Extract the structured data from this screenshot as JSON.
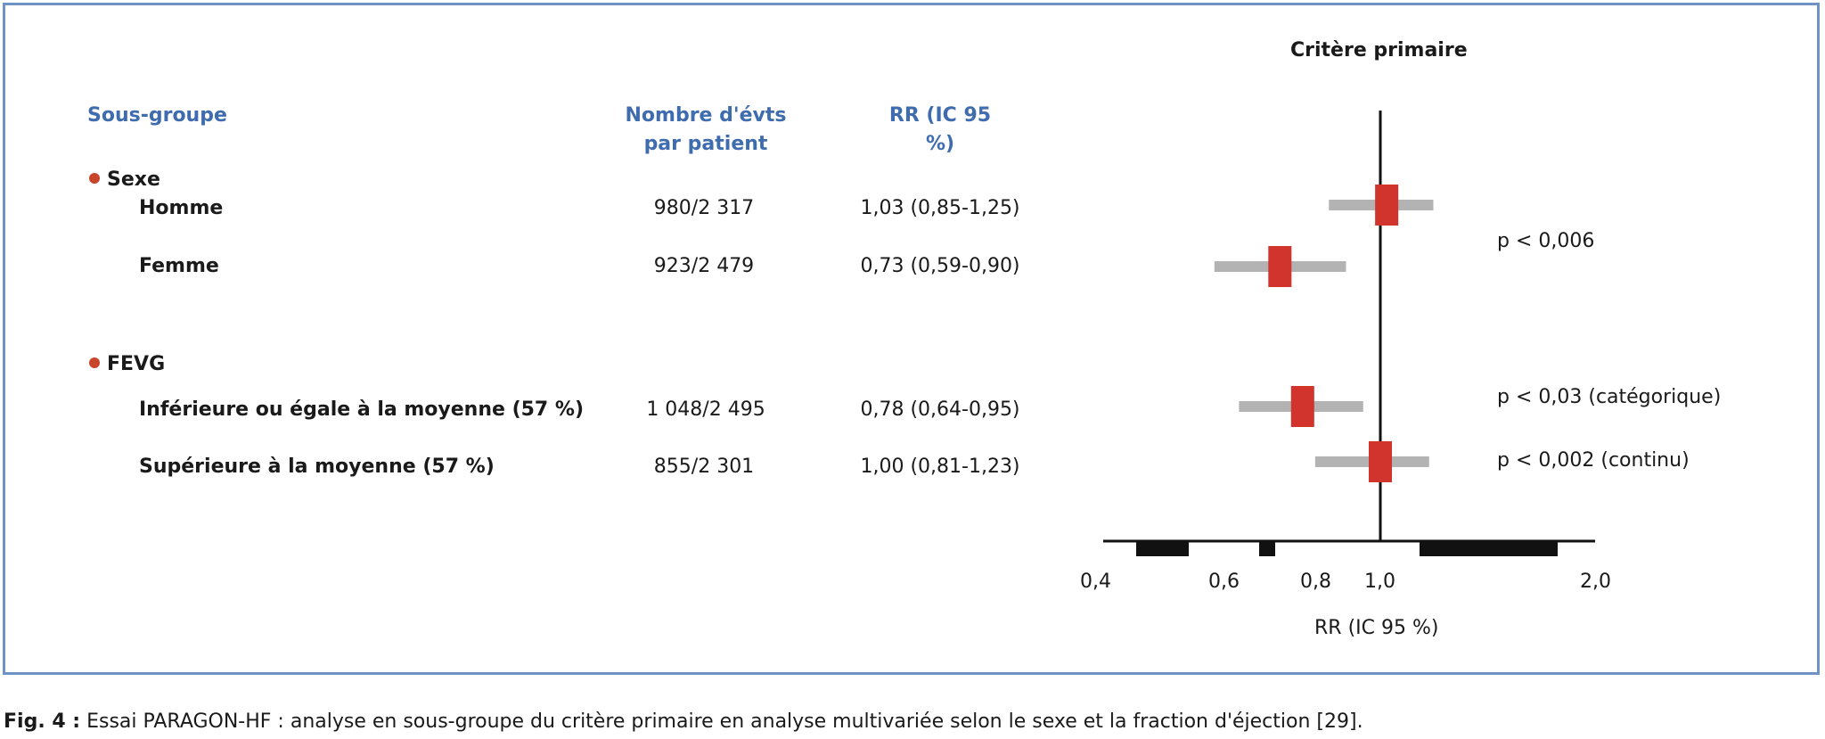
{
  "chart_data": {
    "type": "forest",
    "title": "Critère primaire",
    "xlabel": "RR (IC 95 %)",
    "x_tick_labels": [
      "0,4",
      "0,6",
      "0,8",
      "1,0",
      "2,0"
    ],
    "reference_line": 1.0,
    "columns": {
      "subgroup": "Sous-groupe",
      "events": "Nombre d'évts par patient",
      "rr": "RR (IC 95 %)"
    },
    "groups": [
      {
        "name": "Sexe",
        "p_value": "p < 0,006",
        "rows": [
          {
            "label": "Homme",
            "events": "980/2 317",
            "rr_text": "1,03 (0,85-1,25)",
            "rr": 1.03,
            "low": 0.85,
            "high": 1.25
          },
          {
            "label": "Femme",
            "events": "923/2 479",
            "rr_text": "0,73 (0,59-0,90)",
            "rr": 0.73,
            "low": 0.59,
            "high": 0.9
          }
        ]
      },
      {
        "name": "FEVG",
        "p_values": [
          "p < 0,03 (catégorique)",
          "p < 0,002 (continu)"
        ],
        "rows": [
          {
            "label": "Inférieure ou égale à la moyenne (57 %)",
            "events": "1 048/2 495",
            "rr_text": "0,78 (0,64-0,95)",
            "rr": 0.78,
            "low": 0.64,
            "high": 0.95
          },
          {
            "label": "Supérieure à la moyenne (57 %)",
            "events": "855/2 301",
            "rr_text": "1,00 (0,81-1,23)",
            "rr": 1.0,
            "low": 0.81,
            "high": 1.23
          }
        ]
      }
    ],
    "colors": {
      "point": "#d0342c",
      "ci": "#b3b3b3",
      "header": "#3f6cae",
      "bullet": "#c8442a",
      "frame": "#6f93c7"
    }
  },
  "caption": {
    "label": "Fig. 4 :",
    "text": " Essai PARAGON-HF : analyse en sous-groupe du critère primaire en analyse multivariée selon le sexe et la fraction d'éjection [29]."
  }
}
